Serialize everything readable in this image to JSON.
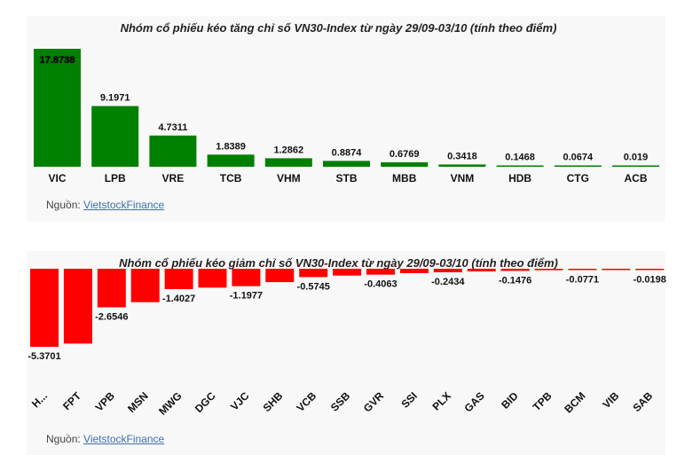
{
  "chart_data": [
    {
      "type": "bar",
      "title": "Nhóm cổ phiếu kéo tăng chỉ số VN30-Index từ ngày 29/09-03/10 (tính theo điểm)",
      "categories": [
        "VIC",
        "LPB",
        "VRE",
        "TCB",
        "VHM",
        "STB",
        "MBB",
        "VNM",
        "HDB",
        "CTG",
        "ACB"
      ],
      "values": [
        17.8738,
        9.1971,
        4.7311,
        1.8389,
        1.2862,
        0.8874,
        0.6769,
        0.3418,
        0.1468,
        0.0674,
        0.019
      ],
      "labels": [
        "17.8738",
        "9.1971",
        "4.7311",
        "1.8389",
        "1.2862",
        "0.8874",
        "0.6769",
        "0.3418",
        "0.1468",
        "0.0674",
        "0.019"
      ],
      "color": "#008000",
      "source_label": "Nguồn:",
      "source_link": "VietstockFinance"
    },
    {
      "type": "bar",
      "title": "Nhóm cổ phiếu kéo giảm chỉ số VN30-Index từ ngày 29/09-03/10 (tính theo điểm)",
      "categories": [
        "H...",
        "FPT",
        "VPB",
        "MSN",
        "MWG",
        "DGC",
        "VJC",
        "SHB",
        "VCB",
        "SSB",
        "GVR",
        "SSI",
        "PLX",
        "GAS",
        "BID",
        "TPB",
        "BCM",
        "VIB",
        "SAB"
      ],
      "values": [
        -5.3701,
        -5.15,
        -2.6546,
        -2.3,
        -1.4027,
        -1.3,
        -1.1977,
        -0.92,
        -0.5745,
        -0.47,
        -0.4063,
        -0.3,
        -0.2434,
        -0.18,
        -0.1476,
        -0.1,
        -0.0771,
        -0.04,
        -0.0198
      ],
      "labels": [
        "-5.3701",
        "",
        "-2.6546",
        "",
        "-1.4027",
        "",
        "-1.1977",
        "",
        "-0.5745",
        "",
        "-0.4063",
        "",
        "-0.2434",
        "",
        "-0.1476",
        "",
        "-0.0771",
        "",
        "-0.0198"
      ],
      "color": "#ff0000",
      "source_label": "Nguồn:",
      "source_link": "VietstockFinance"
    }
  ]
}
